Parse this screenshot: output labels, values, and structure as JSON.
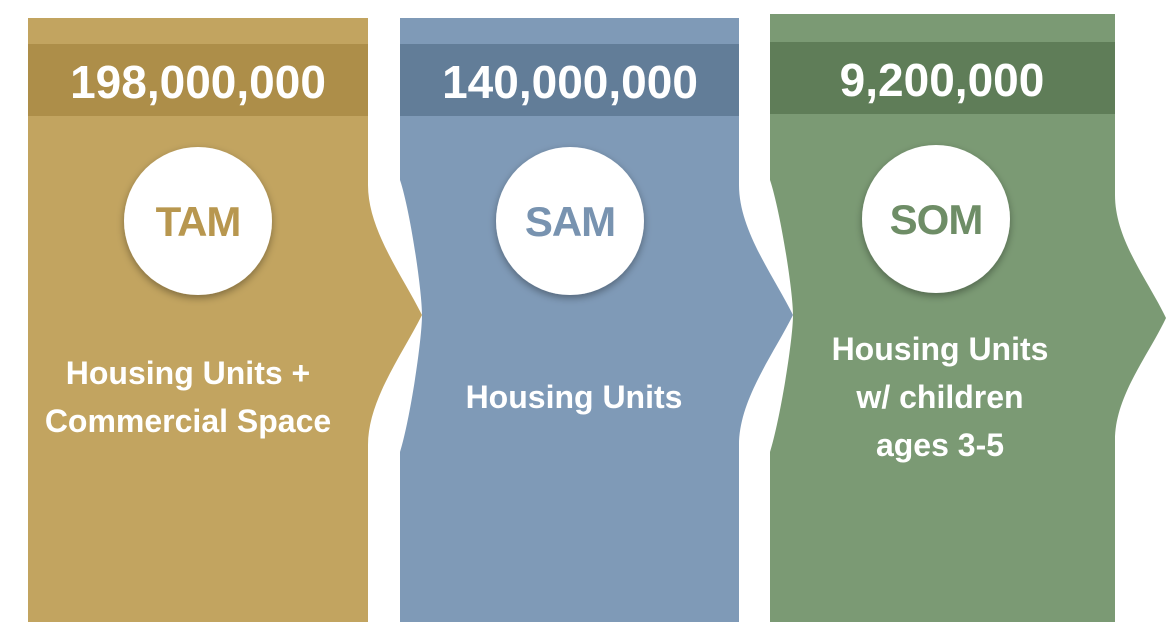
{
  "panels": [
    {
      "value": "198,000,000",
      "acronym": "TAM",
      "description_lines": [
        "Housing Units +",
        "Commercial Space"
      ],
      "colors": {
        "body": "#C2A460",
        "band": "#AD8E49",
        "accent": "#B8974F"
      }
    },
    {
      "value": "140,000,000",
      "acronym": "SAM",
      "description_lines": [
        "Housing Units"
      ],
      "colors": {
        "body": "#7F9AB7",
        "band": "#627D98",
        "accent": "#7893B0"
      }
    },
    {
      "value": "9,200,000",
      "acronym": "SOM",
      "description_lines": [
        "Housing Units",
        "w/ children",
        "ages 3-5"
      ],
      "colors": {
        "body": "#7B9A74",
        "band": "#5F7D58",
        "accent": "#6E8D66"
      }
    }
  ]
}
